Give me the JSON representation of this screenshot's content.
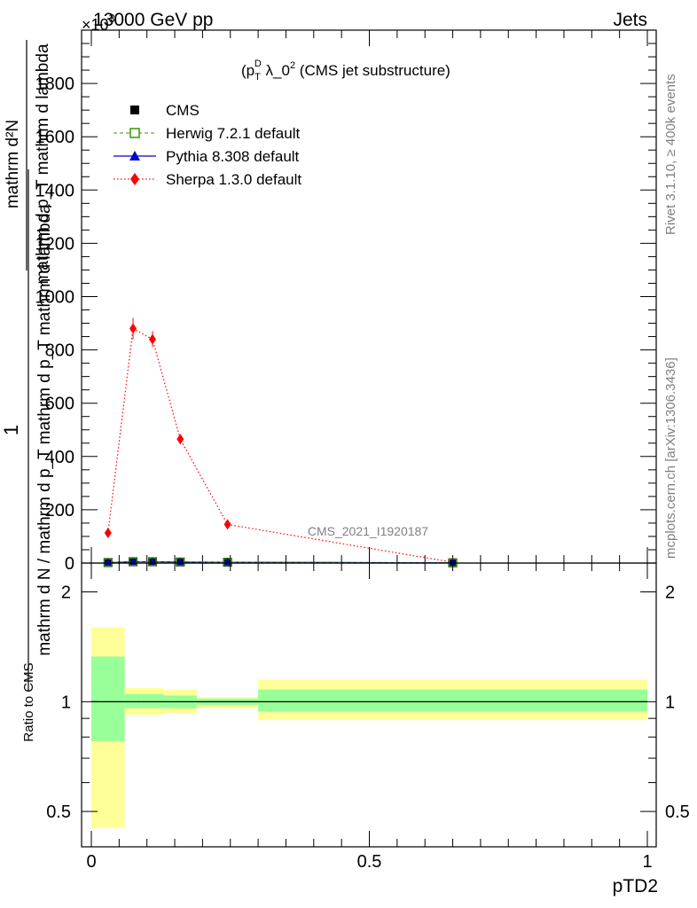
{
  "header": {
    "left": "13000 GeV pp",
    "right": "Jets",
    "exponent": "×10",
    "exponent_power": "3"
  },
  "main": {
    "title": "(p_T^D)^2 λ_0^2 (CMS jet substructure)",
    "title_pre": "(p",
    "title_sub": "T",
    "title_sup_D": "D",
    "title_sup_2": "2",
    "title_post": " λ_0",
    "title_sup_end": "2",
    "title_tail": " (CMS jet substructure)",
    "ylabel_num": "1",
    "ylabel_den": "mathrm d N / mathrm d p_T mathrm d p_T mathrm d lambda",
    "ylabel_numline": "mathrm d²N",
    "ylabel_numline2": "mathrm d p_T mathrm d lambda",
    "watermark": "CMS_2021_I1920187",
    "yticks": [
      "0",
      "200",
      "400",
      "600",
      "800",
      "1000",
      "1200",
      "1400",
      "1600",
      "1800"
    ]
  },
  "side": {
    "rivet": "Rivet 3.1.10, ≥ 400k events",
    "mcplots": "mcplots.cern.ch [arXiv:1306.3436]"
  },
  "legend": {
    "items": [
      {
        "label": "CMS",
        "color": "#000000",
        "marker": "square"
      },
      {
        "label": "Herwig 7.2.1 default",
        "color": "#339900",
        "marker": "open-square"
      },
      {
        "label": "Pythia 8.308 default",
        "color": "#0000cc",
        "marker": "triangle"
      },
      {
        "label": "Sherpa 1.3.0 default",
        "color": "#ff0000",
        "marker": "diamond"
      }
    ]
  },
  "ratio": {
    "ylabel": "Ratio to CMS",
    "yticks": [
      "0.5",
      "1",
      "2"
    ]
  },
  "xaxis": {
    "label": "pTD2",
    "ticks": [
      "0",
      "0.5",
      "1"
    ]
  },
  "chart_data": {
    "type": "scatter",
    "title": "(p_T^D)^2 λ_0^2 (CMS jet substructure)",
    "xlabel": "pTD2",
    "ylabel": "1 / mathrm d N / mathrm d p_T mathrm d p_T mathrm d lambda · mathrm d²N / mathrm d p_T mathrm d lambda",
    "y_scale_factor": 1000,
    "xlim": [
      0,
      1
    ],
    "ylim": [
      0,
      2000
    ],
    "bins": [
      [
        0,
        0.06
      ],
      [
        0.06,
        0.09
      ],
      [
        0.09,
        0.13
      ],
      [
        0.13,
        0.19
      ],
      [
        0.19,
        0.3
      ],
      [
        0.3,
        1.0
      ]
    ],
    "x": [
      0.03,
      0.075,
      0.11,
      0.16,
      0.245,
      0.65
    ],
    "series": [
      {
        "name": "CMS",
        "values": [
          2,
          5,
          5,
          4,
          3,
          1
        ]
      },
      {
        "name": "Herwig 7.2.1 default",
        "values": [
          2,
          5,
          5,
          4,
          3,
          1
        ]
      },
      {
        "name": "Pythia 8.308 default",
        "values": [
          2,
          5,
          5,
          4,
          3,
          1
        ]
      },
      {
        "name": "Sherpa 1.3.0 default",
        "values": [
          113,
          880,
          840,
          465,
          145,
          3
        ],
        "errors": [
          5,
          40,
          30,
          15,
          8,
          1
        ]
      }
    ],
    "ratio_panel": {
      "ylabel": "Ratio to CMS",
      "ylim": [
        0.4,
        2.4
      ],
      "yscale": "log",
      "reference": 1,
      "band_inner": [
        [
          0.78,
          1.33
        ],
        [
          0.96,
          1.05
        ],
        [
          0.96,
          1.05
        ],
        [
          0.96,
          1.04
        ],
        [
          0.98,
          1.02
        ],
        [
          0.94,
          1.08
        ]
      ],
      "band_outer": [
        [
          0.45,
          1.6
        ],
        [
          0.92,
          1.09
        ],
        [
          0.92,
          1.09
        ],
        [
          0.93,
          1.08
        ],
        [
          0.96,
          1.03
        ],
        [
          0.89,
          1.15
        ]
      ]
    },
    "legend_position": "top-left",
    "grid": false
  }
}
